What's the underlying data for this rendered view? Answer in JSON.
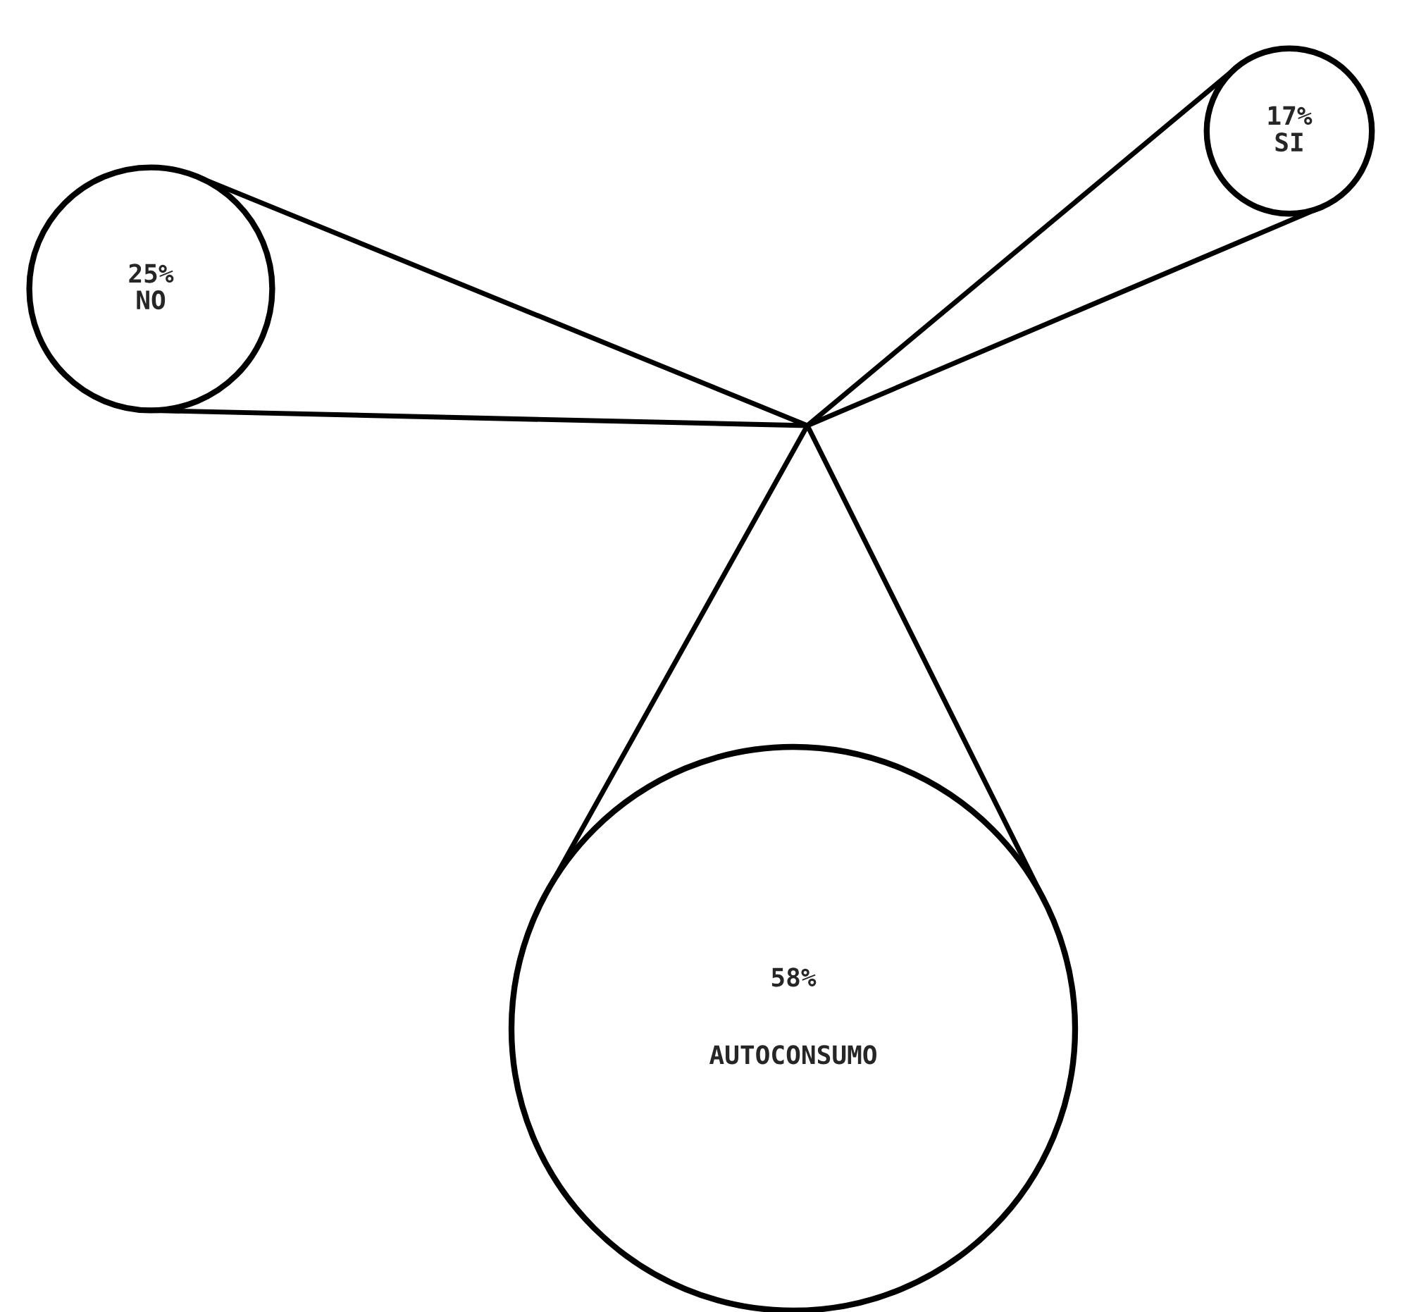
{
  "chart_data": {
    "type": "other",
    "categories": [
      "NO",
      "SI",
      "AUTOCONSUMO"
    ],
    "values": [
      25,
      17,
      58
    ],
    "value_labels": [
      "25%",
      "17%",
      "58%"
    ]
  }
}
